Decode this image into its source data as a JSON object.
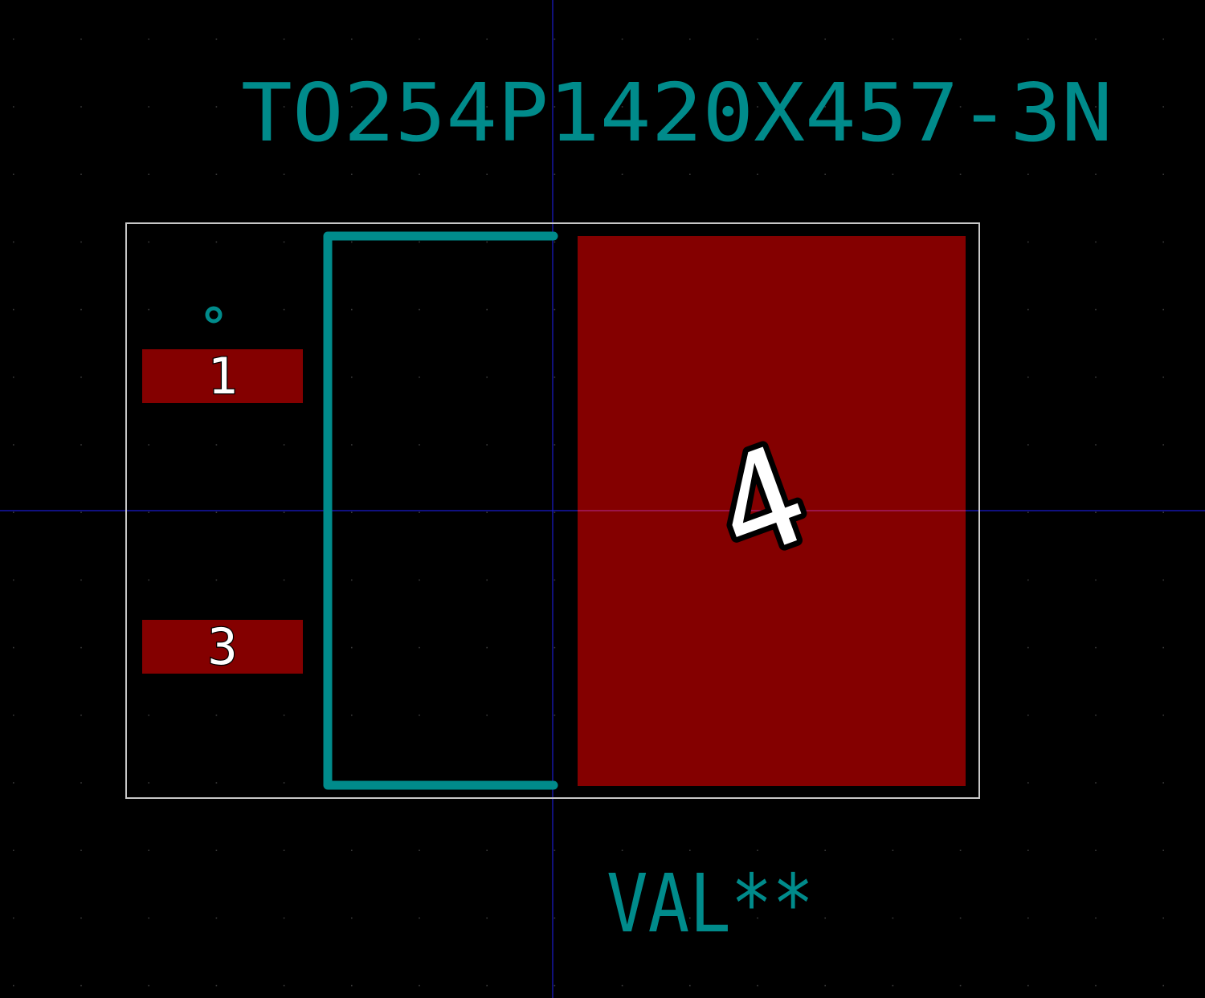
{
  "footprint": {
    "reference_text": "TO254P1420X457-3N",
    "value_text": "VAL**",
    "pads": [
      {
        "number": "1"
      },
      {
        "number": "3"
      },
      {
        "number": "4"
      }
    ]
  },
  "colors": {
    "background": "#000000",
    "grid_dot": "#3a3a3a",
    "axis_line": "#1a1acc",
    "axis_origin_highlight": "#aa2277",
    "silkscreen": "#008b8b",
    "courtyard": "#c8c8c8",
    "pad_fill": "#840000",
    "pad_label": "#ffffff",
    "pad_label_outline": "#000000"
  }
}
